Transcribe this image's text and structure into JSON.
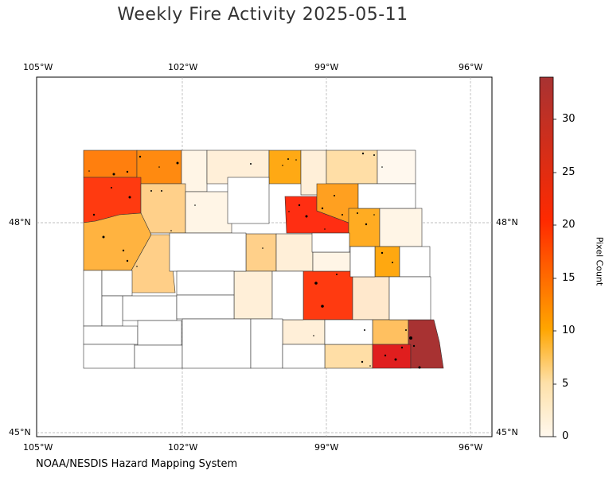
{
  "title": "Weekly Fire Activity 2025-05-11",
  "source": "NOAA/NESDIS Hazard Mapping System",
  "map": {
    "lon_ticks_top": [
      "105°W",
      "102°W",
      "99°W",
      "96°W"
    ],
    "lon_ticks_bottom": [
      "105°W",
      "102°W",
      "99°W",
      "96°W"
    ],
    "lat_ticks_left": [
      "48°N",
      "45°N"
    ],
    "lat_ticks_right": [
      "48°N",
      "45°N"
    ],
    "extent": {
      "lon": [
        -105,
        -95.5
      ],
      "lat": [
        44.9,
        50.1
      ]
    }
  },
  "colorbar": {
    "label": "Pixel Count",
    "ticks": [
      "0",
      "5",
      "10",
      "15",
      "20",
      "25",
      "30"
    ],
    "range": [
      0,
      34
    ],
    "colors": [
      "#fff8ee",
      "#fde0a8",
      "#ffa500",
      "#ff2a00",
      "#a83232"
    ]
  },
  "counties": [
    {
      "value": 14,
      "color": "#ff7f0e"
    },
    {
      "value": 13,
      "color": "#ff8a10"
    },
    {
      "value": 1,
      "color": "#fff5e6"
    },
    {
      "value": 2,
      "color": "#ffefd8"
    },
    {
      "value": 9,
      "color": "#ffa914"
    },
    {
      "value": 2,
      "color": "#ffefd8"
    },
    {
      "value": 4,
      "color": "#ffdea6"
    },
    {
      "value": 1,
      "color": "#fff8ee"
    },
    {
      "value": 22,
      "color": "#ff3a10"
    },
    {
      "value": 6,
      "color": "#ffd08a"
    },
    {
      "value": 1,
      "color": "#fff5e6"
    },
    {
      "value": 21,
      "color": "#ff2e12"
    },
    {
      "value": 11,
      "color": "#ffa020"
    },
    {
      "value": 11,
      "color": "#ffac22"
    },
    {
      "value": 9,
      "color": "#ffb340"
    },
    {
      "value": 1,
      "color": "#fff5e6"
    },
    {
      "value": 7,
      "color": "#ffcf88"
    },
    {
      "value": 6,
      "color": "#ffd08a"
    },
    {
      "value": 2,
      "color": "#ffefd8"
    },
    {
      "value": 11,
      "color": "#ffa810"
    },
    {
      "value": 22,
      "color": "#ff3a10"
    },
    {
      "value": 3,
      "color": "#ffe8cc"
    },
    {
      "value": 2,
      "color": "#ffefd8"
    },
    {
      "value": 1,
      "color": "#fff5e6"
    },
    {
      "value": 2,
      "color": "#ffefd8"
    },
    {
      "value": 7,
      "color": "#ffc060"
    },
    {
      "value": 4,
      "color": "#ffdea6"
    },
    {
      "value": 26,
      "color": "#e01e1e"
    },
    {
      "value": 33,
      "color": "#a83232"
    }
  ]
}
